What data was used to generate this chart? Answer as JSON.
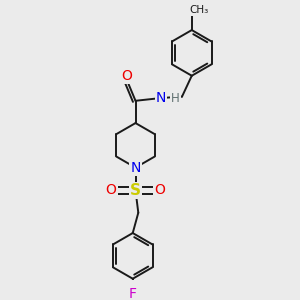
{
  "bg_color": "#ebebeb",
  "bond_color": "#1a1a1a",
  "bond_width": 1.4,
  "atom_colors": {
    "N": "#0000ee",
    "O": "#ee0000",
    "S": "#cccc00",
    "F": "#cc00cc",
    "H": "#607070",
    "C": "#1a1a1a"
  },
  "font_size": 9
}
